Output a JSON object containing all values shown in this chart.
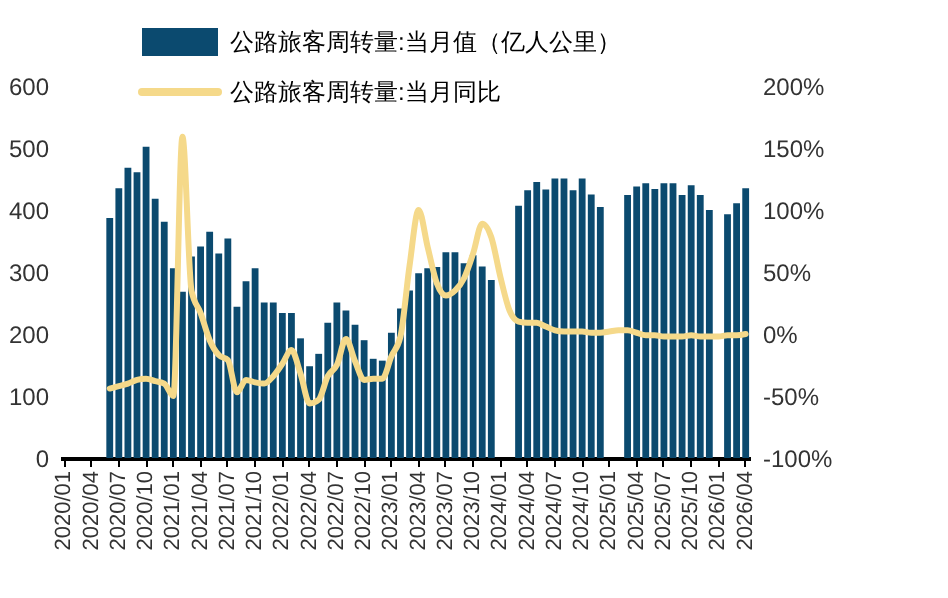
{
  "chart_data": {
    "type": "bar",
    "categories": [
      "2020/01",
      null,
      null,
      "2020/04",
      null,
      null,
      "2020/07",
      null,
      null,
      "2020/10",
      null,
      null,
      "2021/01",
      null,
      null,
      "2021/04",
      null,
      null,
      "2021/07",
      null,
      null,
      "2021/10",
      null,
      null,
      "2022/01",
      null,
      null,
      "2022/04",
      null,
      null,
      "2022/07",
      null,
      null,
      "2022/10",
      null,
      null,
      "2023/01",
      null,
      null,
      "2023/04",
      null,
      null,
      "2023/07",
      null,
      null,
      "2023/10",
      null,
      null,
      "2024/01",
      null,
      null,
      "2024/04",
      null,
      null,
      "2024/07",
      null,
      null,
      "2024/10",
      null,
      null,
      "2025/01",
      null,
      null,
      "2025/04",
      null,
      null,
      "2025/07",
      null,
      null,
      "2025/10",
      null,
      null,
      "2026/01",
      null,
      null,
      "2026/04"
    ],
    "series": [
      {
        "name": "公路旅客周转量:当月值（亿人公里）",
        "color": "#0b4a6f",
        "values": [
          null,
          null,
          null,
          null,
          null,
          387,
          435,
          468,
          461,
          502,
          418,
          381,
          306,
          268,
          325,
          341,
          365,
          330,
          354,
          244,
          285,
          306,
          251,
          251,
          234,
          234,
          193,
          148,
          168,
          218,
          251,
          238,
          215,
          190,
          160,
          157,
          202,
          241,
          270,
          298,
          306,
          308,
          332,
          332,
          314,
          327,
          309,
          287,
          null,
          null,
          407,
          432,
          445,
          433,
          451,
          451,
          432,
          451,
          425,
          405,
          null,
          null,
          424,
          438,
          443,
          434,
          443,
          443,
          424,
          440,
          424,
          400,
          null,
          393,
          411,
          435
        ]
      },
      {
        "name": "公路旅客周转量:当月同比",
        "type": "line",
        "axis": "y2",
        "color": "#f5d98a",
        "values": [
          null,
          null,
          null,
          null,
          null,
          -44,
          -42,
          -40,
          -37,
          -36,
          -38,
          -40,
          -50,
          159,
          35,
          17,
          -5,
          -17,
          -21,
          -47,
          -37,
          -39,
          -40,
          -34,
          -24,
          -13,
          -32,
          -56,
          -53,
          -34,
          -25,
          -4,
          -22,
          -37,
          -36,
          -36,
          -18,
          -2,
          55,
          100,
          70,
          41,
          31,
          35,
          45,
          65,
          89,
          78,
          46,
          19,
          10,
          9,
          9,
          6,
          3,
          2,
          2,
          2,
          1,
          1,
          2,
          3,
          3,
          1,
          -1,
          -1,
          -2,
          -2,
          -2,
          -1,
          -2,
          -2,
          -2,
          -1,
          -1,
          0
        ]
      }
    ],
    "ylim": [
      0,
      600
    ],
    "yticks": [
      0,
      100,
      200,
      300,
      400,
      500,
      600
    ],
    "y2lim": [
      -100,
      200
    ],
    "y2ticks": [
      {
        "value": -100,
        "label": "-100%"
      },
      {
        "value": -50,
        "label": "-50%"
      },
      {
        "value": 0,
        "label": "0%"
      },
      {
        "value": 50,
        "label": "50%"
      },
      {
        "value": 100,
        "label": "100%"
      },
      {
        "value": 150,
        "label": "150%"
      },
      {
        "value": 200,
        "label": "200%"
      }
    ],
    "legend": "top",
    "grid": false
  }
}
